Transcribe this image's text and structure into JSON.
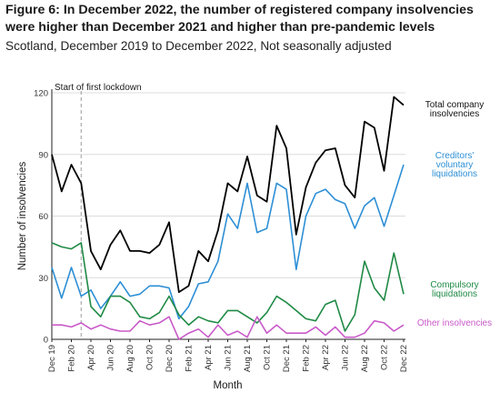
{
  "header": {
    "title": "Figure 6: In December 2022, the number of registered company insolvencies were higher than December 2021 and higher than pre-pandemic levels",
    "subtitle": "Scotland, December 2019 to December 2022, Not seasonally adjusted"
  },
  "chart_data": {
    "type": "line",
    "xlabel": "Month",
    "ylabel": "Number of insolvencies",
    "ylim": [
      0,
      120
    ],
    "yticks": [
      0,
      30,
      60,
      90,
      120
    ],
    "grid": true,
    "legend": "direct labels at the right end of each line",
    "annotation": {
      "label": "Start of first lockdown",
      "x": "Mar 20"
    },
    "tick_labels": [
      "Dec 19",
      "Feb 20",
      "Apr 20",
      "Jun 20",
      "Aug 20",
      "Oct 20",
      "Dec 20",
      "Feb 21",
      "Apr 21",
      "Jun 21",
      "Aug 21",
      "Oct 21",
      "Dec 21",
      "Feb 22",
      "Apr 22",
      "Jun 22",
      "Aug 22",
      "Oct 22",
      "Dec 22"
    ],
    "x": [
      "Dec 19",
      "Jan 20",
      "Feb 20",
      "Mar 20",
      "Apr 20",
      "May 20",
      "Jun 20",
      "Jul 20",
      "Aug 20",
      "Sep 20",
      "Oct 20",
      "Nov 20",
      "Dec 20",
      "Jan 21",
      "Feb 21",
      "Mar 21",
      "Apr 21",
      "May 21",
      "Jun 21",
      "Jul 21",
      "Aug 21",
      "Sep 21",
      "Oct 21",
      "Nov 21",
      "Dec 21",
      "Jan 22",
      "Feb 22",
      "Mar 22",
      "Apr 22",
      "May 22",
      "Jun 22",
      "Jul 22",
      "Aug 22",
      "Sep 22",
      "Oct 22",
      "Nov 22",
      "Dec 22"
    ],
    "series": [
      {
        "name": "Total company insolvencies",
        "label_lines": [
          "Total company",
          "insolvencies"
        ],
        "color": "#000000",
        "values": [
          90,
          72,
          85,
          76,
          43,
          34,
          46,
          53,
          43,
          43,
          42,
          46,
          57,
          23,
          26,
          43,
          38,
          53,
          76,
          72,
          89,
          70,
          67,
          104,
          93,
          51,
          74,
          86,
          92,
          93,
          75,
          69,
          106,
          103,
          82,
          118,
          114
        ]
      },
      {
        "name": "Creditors' voluntary liquidations",
        "label_lines": [
          "Creditors'",
          "voluntary",
          "liquidations"
        ],
        "color": "#2d8fd5",
        "values": [
          35,
          20,
          35,
          21,
          24,
          15,
          21,
          28,
          21,
          22,
          26,
          26,
          25,
          10,
          16,
          27,
          28,
          38,
          61,
          54,
          76,
          52,
          54,
          76,
          73,
          34,
          60,
          71,
          73,
          68,
          66,
          54,
          65,
          69,
          55,
          70,
          85
        ]
      },
      {
        "name": "Compulsory liquidations",
        "label_lines": [
          "Compulsory",
          "liquidations"
        ],
        "color": "#1f8a45",
        "values": [
          47,
          45,
          44,
          47,
          16,
          11,
          21,
          21,
          18,
          11,
          10,
          13,
          21,
          12,
          7,
          11,
          9,
          8,
          14,
          14,
          11,
          8,
          13,
          21,
          18,
          14,
          10,
          9,
          17,
          19,
          4,
          12,
          38,
          25,
          19,
          42,
          22
        ]
      },
      {
        "name": "Other insolvencies",
        "label_lines": [
          "Other insolvencies"
        ],
        "color": "#c95ac9",
        "values": [
          7,
          7,
          6,
          8,
          5,
          7,
          5,
          4,
          4,
          9,
          7,
          8,
          11,
          0,
          3,
          5,
          1,
          7,
          2,
          4,
          1,
          11,
          3,
          7,
          3,
          3,
          3,
          6,
          2,
          6,
          1,
          1,
          3,
          9,
          8,
          4,
          7
        ]
      }
    ]
  }
}
